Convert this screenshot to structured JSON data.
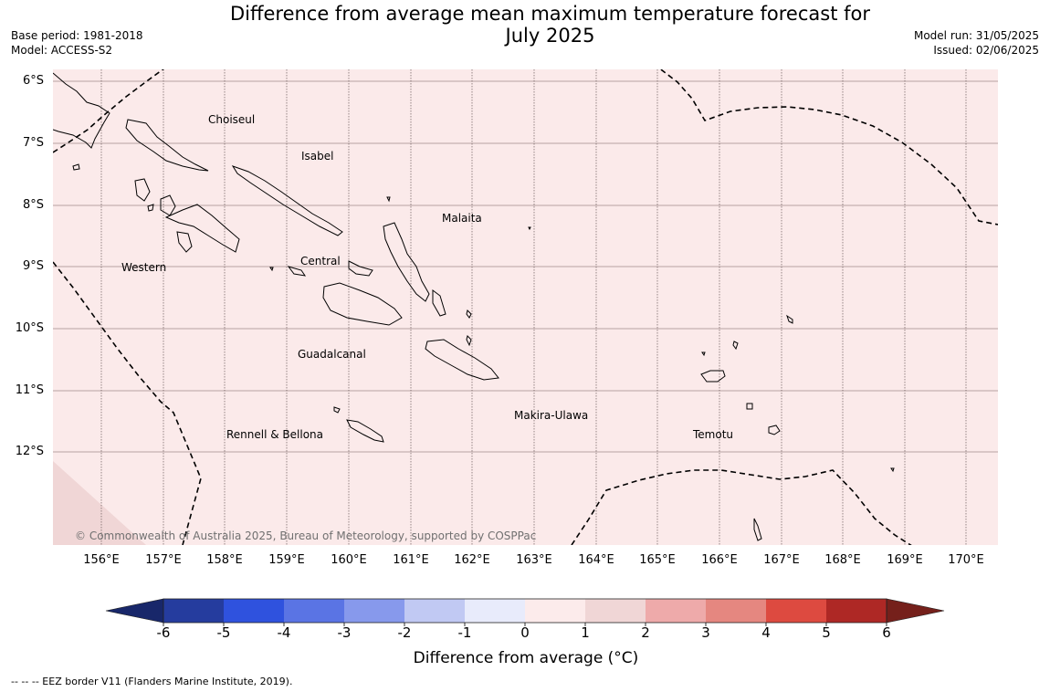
{
  "title_line1": "Difference from average mean maximum temperature forecast for",
  "title_line2": "July 2025",
  "meta_left": {
    "base_period": "Base period: 1981-2018",
    "model": "Model: ACCESS-S2"
  },
  "meta_right": {
    "model_run": "Model run: 31/05/2025",
    "issued": "Issued: 02/06/2025"
  },
  "lat_labels": [
    "6°S",
    "7°S",
    "8°S",
    "9°S",
    "10°S",
    "11°S",
    "12°S"
  ],
  "lon_labels": [
    "156°E",
    "157°E",
    "158°E",
    "159°E",
    "160°E",
    "161°E",
    "162°E",
    "163°E",
    "164°E",
    "165°E",
    "166°E",
    "167°E",
    "168°E",
    "169°E",
    "170°E"
  ],
  "regions": {
    "choiseul": "Choiseul",
    "isabel": "Isabel",
    "malaita": "Malaita",
    "central": "Central",
    "western": "Western",
    "guadalcanal": "Guadalcanal",
    "rennell": "Rennell & Bellona",
    "makira": "Makira-Ulawa",
    "temotu": "Temotu"
  },
  "copyright": "© Commonwealth of Australia 2025, Bureau of Meteorology, supported by COSPPac",
  "colorbar": {
    "ticks": [
      "-6",
      "-5",
      "-4",
      "-3",
      "-2",
      "-1",
      "0",
      "1",
      "2",
      "3",
      "4",
      "5",
      "6"
    ],
    "colors": [
      "#253c9e",
      "#2f52de",
      "#5a74e4",
      "#8799ec",
      "#c1c9f3",
      "#e8ebfb",
      "#fcebeb",
      "#f0d6d6",
      "#eeaaaa",
      "#e58780",
      "#dd4a40",
      "#ae2825"
    ],
    "under_color": "#18276a",
    "over_color": "#75201b",
    "label": "Difference from average (°C)"
  },
  "map_colors": {
    "dominant": "#fbeaea",
    "secondary": "#f0d6d6"
  },
  "footnote": "--  --  -- EEZ border V11 (Flanders Marine Institute, 2019)."
}
